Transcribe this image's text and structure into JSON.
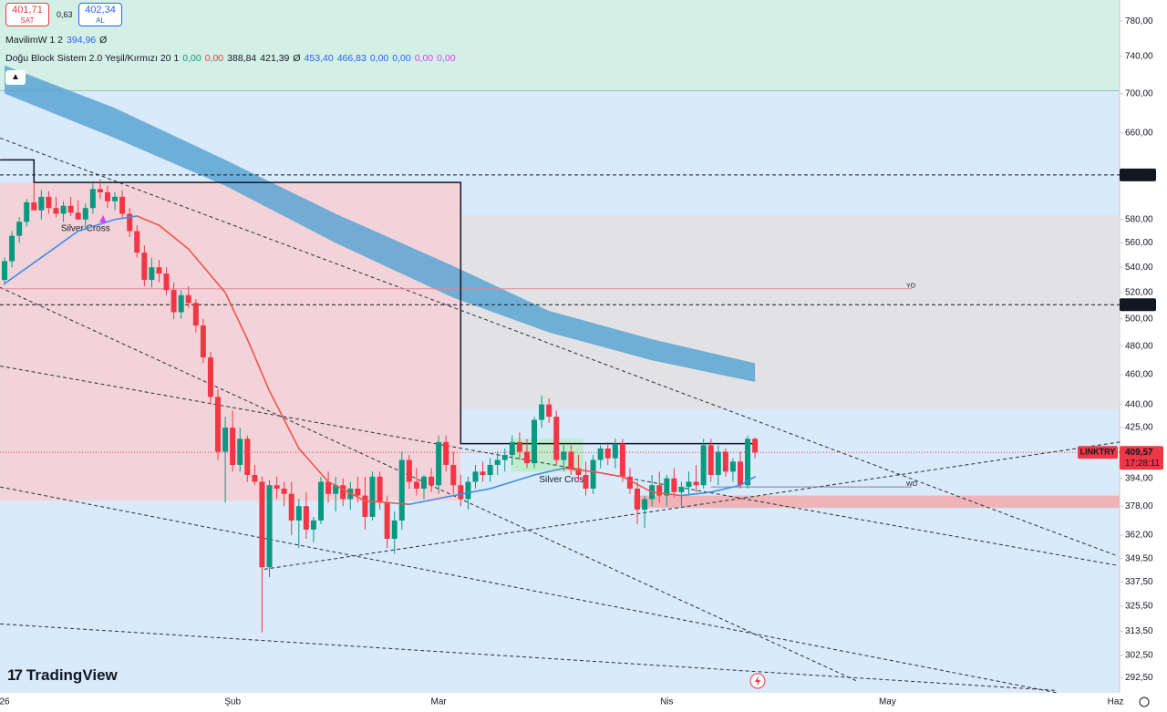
{
  "chart_data": {
    "type": "candlestick",
    "symbol": "LINKTRY",
    "countdown": "17:28:11",
    "log_scale": true,
    "ylim": [
      286,
      805
    ],
    "yticks": [
      {
        "value": 780,
        "label": "780,00"
      },
      {
        "value": 740,
        "label": "740,00"
      },
      {
        "value": 700,
        "label": "700,00"
      },
      {
        "value": 660,
        "label": "660,00"
      },
      {
        "value": 580,
        "label": "580,00"
      },
      {
        "value": 560,
        "label": "560,00"
      },
      {
        "value": 540,
        "label": "540,00"
      },
      {
        "value": 520,
        "label": "520,00"
      },
      {
        "value": 500,
        "label": "500,00"
      },
      {
        "value": 480,
        "label": "480,00"
      },
      {
        "value": 460,
        "label": "460,00"
      },
      {
        "value": 440,
        "label": "440,00"
      },
      {
        "value": 425,
        "label": "425,00"
      },
      {
        "value": 394,
        "label": "394,00"
      },
      {
        "value": 378,
        "label": "378,00"
      },
      {
        "value": 362,
        "label": "362,00"
      },
      {
        "value": 349.5,
        "label": "349,50"
      },
      {
        "value": 337.5,
        "label": "337,50"
      },
      {
        "value": 325.5,
        "label": "325,50"
      },
      {
        "value": 313.5,
        "label": "313,50"
      },
      {
        "value": 302.5,
        "label": "302,50"
      },
      {
        "value": 292.5,
        "label": "292,50"
      }
    ],
    "colors": {
      "up": "#089981",
      "down": "#f23645"
    },
    "categories": [
      "26",
      null,
      null,
      null,
      null,
      null,
      null,
      null,
      null,
      null,
      null,
      null,
      null,
      null,
      null,
      null,
      null,
      null,
      null,
      null,
      null,
      null,
      null,
      null,
      null,
      null,
      null,
      null,
      null,
      null,
      null,
      "Şub",
      null,
      null,
      null,
      null,
      null,
      null,
      null,
      null,
      null,
      null,
      null,
      null,
      null,
      null,
      null,
      null,
      null,
      null,
      null,
      null,
      null,
      null,
      null,
      null,
      null,
      null,
      null,
      "Mar",
      null,
      null,
      null,
      null,
      null,
      null,
      null,
      null,
      null,
      null,
      null,
      null,
      null,
      null,
      null,
      null,
      null,
      null,
      null,
      null,
      null,
      null,
      null,
      null,
      null,
      null,
      null,
      null,
      null,
      null,
      "Nis",
      null,
      null,
      null,
      null,
      null,
      null,
      null,
      null,
      null,
      null,
      null,
      null,
      null,
      null,
      null,
      null,
      null,
      null,
      null,
      null,
      null,
      null,
      null,
      null,
      null,
      null,
      null,
      null,
      null,
      "May",
      null,
      null,
      null,
      null,
      null,
      null,
      null,
      null,
      null,
      null,
      null,
      null,
      null,
      null,
      null,
      null,
      null,
      null,
      null,
      null,
      null,
      null,
      null,
      null,
      null,
      null,
      null,
      null,
      null,
      null,
      "Haz"
    ],
    "ohlc": [
      [
        530,
        548,
        526,
        545
      ],
      [
        545,
        570,
        540,
        566
      ],
      [
        566,
        582,
        560,
        578
      ],
      [
        578,
        598,
        574,
        595
      ],
      [
        595,
        612,
        590,
        588
      ],
      [
        588,
        606,
        580,
        600
      ],
      [
        600,
        605,
        585,
        590
      ],
      [
        590,
        600,
        582,
        585
      ],
      [
        585,
        596,
        578,
        592
      ],
      [
        592,
        600,
        583,
        586
      ],
      [
        586,
        597,
        580,
        580
      ],
      [
        580,
        594,
        572,
        590
      ],
      [
        590,
        612,
        585,
        607
      ],
      [
        607,
        616,
        598,
        604
      ],
      [
        604,
        610,
        590,
        596
      ],
      [
        596,
        604,
        588,
        600
      ],
      [
        600,
        606,
        582,
        585
      ],
      [
        585,
        590,
        565,
        570
      ],
      [
        570,
        575,
        548,
        552
      ],
      [
        552,
        558,
        525,
        530
      ],
      [
        530,
        548,
        524,
        540
      ],
      [
        540,
        546,
        528,
        535
      ],
      [
        535,
        540,
        518,
        522
      ],
      [
        522,
        528,
        500,
        505
      ],
      [
        505,
        522,
        500,
        518
      ],
      [
        518,
        525,
        508,
        512
      ],
      [
        512,
        515,
        490,
        495
      ],
      [
        495,
        500,
        468,
        472
      ],
      [
        472,
        476,
        440,
        445
      ],
      [
        445,
        450,
        405,
        410
      ],
      [
        410,
        432,
        380,
        425
      ],
      [
        425,
        436,
        398,
        402
      ],
      [
        402,
        425,
        398,
        418
      ],
      [
        418,
        420,
        392,
        396
      ],
      [
        396,
        402,
        390,
        392
      ],
      [
        392,
        395,
        313,
        345
      ],
      [
        345,
        393,
        340,
        390
      ],
      [
        390,
        395,
        382,
        388
      ],
      [
        388,
        392,
        378,
        385
      ],
      [
        385,
        392,
        362,
        370
      ],
      [
        370,
        382,
        355,
        378
      ],
      [
        378,
        386,
        360,
        365
      ],
      [
        365,
        372,
        358,
        370
      ],
      [
        370,
        395,
        368,
        392
      ],
      [
        392,
        398,
        380,
        385
      ],
      [
        385,
        395,
        375,
        390
      ],
      [
        390,
        394,
        378,
        382
      ],
      [
        382,
        392,
        376,
        388
      ],
      [
        388,
        395,
        380,
        384
      ],
      [
        384,
        395,
        365,
        372
      ],
      [
        372,
        398,
        370,
        395
      ],
      [
        395,
        398,
        376,
        380
      ],
      [
        380,
        384,
        355,
        360
      ],
      [
        360,
        375,
        352,
        370
      ],
      [
        370,
        410,
        365,
        405
      ],
      [
        405,
        408,
        388,
        392
      ],
      [
        392,
        400,
        384,
        388
      ],
      [
        388,
        396,
        382,
        395
      ],
      [
        395,
        400,
        386,
        390
      ],
      [
        390,
        420,
        385,
        416
      ],
      [
        416,
        420,
        398,
        402
      ],
      [
        402,
        410,
        385,
        390
      ],
      [
        390,
        396,
        378,
        382
      ],
      [
        382,
        395,
        376,
        392
      ],
      [
        392,
        402,
        388,
        398
      ],
      [
        398,
        404,
        392,
        396
      ],
      [
        396,
        406,
        392,
        402
      ],
      [
        402,
        410,
        396,
        405
      ],
      [
        405,
        412,
        398,
        408
      ],
      [
        408,
        420,
        402,
        416
      ],
      [
        416,
        422,
        405,
        410
      ],
      [
        410,
        418,
        400,
        403
      ],
      [
        403,
        432,
        400,
        430
      ],
      [
        430,
        446,
        425,
        440
      ],
      [
        440,
        444,
        428,
        432
      ],
      [
        432,
        436,
        402,
        405
      ],
      [
        405,
        414,
        398,
        410
      ],
      [
        410,
        414,
        396,
        400
      ],
      [
        400,
        408,
        392,
        396
      ],
      [
        396,
        404,
        384,
        388
      ],
      [
        388,
        408,
        385,
        405
      ],
      [
        405,
        414,
        400,
        412
      ],
      [
        412,
        416,
        402,
        406
      ],
      [
        406,
        418,
        400,
        415
      ],
      [
        415,
        418,
        392,
        395
      ],
      [
        395,
        400,
        385,
        388
      ],
      [
        388,
        392,
        368,
        376
      ],
      [
        376,
        384,
        366,
        382
      ],
      [
        382,
        396,
        378,
        390
      ],
      [
        390,
        398,
        380,
        384
      ],
      [
        384,
        396,
        378,
        394
      ],
      [
        394,
        400,
        383,
        386
      ],
      [
        386,
        392,
        378,
        389
      ],
      [
        389,
        398,
        384,
        392
      ],
      [
        392,
        402,
        386,
        390
      ],
      [
        390,
        418,
        388,
        414
      ],
      [
        414,
        418,
        392,
        396
      ],
      [
        396,
        414,
        390,
        410
      ],
      [
        410,
        412,
        395,
        398
      ],
      [
        398,
        406,
        392,
        404
      ],
      [
        404,
        410,
        388,
        390
      ],
      [
        390,
        420,
        388,
        418
      ],
      [
        418,
        419,
        406,
        409.57
      ],
      null,
      null,
      null,
      null,
      null,
      null,
      null,
      null,
      null,
      null,
      null,
      null,
      null,
      null,
      null,
      null,
      null,
      null,
      null,
      null,
      null,
      null,
      null,
      null,
      null,
      null,
      null,
      null,
      null,
      null,
      null,
      null,
      null,
      null,
      null,
      null,
      null,
      null,
      null,
      null,
      null,
      null,
      null,
      null,
      null,
      null,
      null,
      null,
      null
    ],
    "last_price": {
      "value": 409.57,
      "label": "409,57"
    },
    "levels": [
      {
        "value": 619.94,
        "label": "619,94"
      },
      {
        "value": 510.67,
        "label": "510,67"
      }
    ],
    "overlays": {
      "zones": [
        {
          "x": [
            -0.6,
            152
          ],
          "range": [
            703,
            805
          ],
          "color": "#d4efe5"
        },
        {
          "x": [
            -0.6,
            152
          ],
          "range": [
            437,
            584
          ],
          "color": "#e2e2e4"
        },
        {
          "x": [
            -0.6,
            62
          ],
          "range": [
            381,
            613
          ],
          "color": "#f3d3da"
        },
        {
          "x": [
            85.5,
            152
          ],
          "range": [
            377,
            384
          ],
          "color": "#f0b4b8"
        },
        {
          "x": [
            68.8,
            78.7
          ],
          "range": [
            398,
            418
          ],
          "color": "#bfeccd"
        }
      ],
      "cloud": {
        "color": "#5aa5d2",
        "x": [
          0,
          15,
          30,
          45,
          61,
          74,
          88,
          102
        ],
        "upper": [
          730,
          685,
          634,
          585,
          541,
          506,
          485,
          468
        ],
        "lower": [
          700,
          655,
          610,
          560,
          516,
          490,
          470,
          455
        ]
      },
      "mavilim": {
        "up_color": "#3d8ee6",
        "down_color": "#f2554a",
        "x": [
          0,
          5,
          10,
          15,
          18,
          21,
          25,
          30,
          33,
          36,
          40,
          44,
          49,
          55,
          61,
          66,
          72,
          76,
          80,
          84,
          88,
          92,
          96,
          100,
          102
        ],
        "values": [
          527,
          548,
          570,
          580,
          583,
          575,
          555,
          520,
          485,
          449,
          412,
          392,
          381,
          379,
          384,
          388,
          396,
          400,
          398,
          395,
          386,
          384,
          386,
          390,
          394.96
        ]
      },
      "block_line": {
        "x": [
          -0.6,
          4,
          4,
          62,
          62,
          102,
          102
        ],
        "values": [
          634,
          634,
          613,
          613,
          415,
          415,
          409
        ]
      },
      "trendlines": [
        {
          "x": [
            -0.6,
            151.2
          ],
          "values": [
            655,
            351
          ]
        },
        {
          "x": [
            -0.6,
            115.9
          ],
          "values": [
            524,
            291
          ]
        },
        {
          "x": [
            -0.6,
            151.2
          ],
          "values": [
            466,
            346
          ]
        },
        {
          "x": [
            -0.6,
            143.1
          ],
          "values": [
            389,
            286
          ]
        },
        {
          "x": [
            -0.6,
            143.1
          ],
          "values": [
            317,
            287
          ]
        },
        {
          "x": [
            35.3,
            151.6
          ],
          "values": [
            344,
            416
          ]
        }
      ],
      "marker_lines": [
        {
          "name": "YO",
          "x": [
            -0.6,
            123.3
          ],
          "value": 523,
          "color": "#e08a96"
        },
        {
          "name": "WO",
          "x": [
            96,
            123.3
          ],
          "value": 389,
          "color": "#7a8794"
        }
      ],
      "signals": [
        {
          "label": "Silver Cross",
          "x": 11,
          "value": 572,
          "color": "#3d8ee6"
        },
        {
          "label": "Silver Cross",
          "x": 76,
          "value": 393,
          "color": "#3d8ee6"
        }
      ]
    }
  },
  "header": {
    "bid": {
      "value": "401,71",
      "label": "SAT"
    },
    "spread": "0,63",
    "ask": {
      "value": "402,34",
      "label": "AL"
    },
    "indicators": [
      [
        {
          "text": "MavilimW 1 2",
          "color": "#131722"
        },
        {
          "text": "394,96",
          "color": "#2962ff"
        },
        {
          "text": "Ø",
          "color": "#131722"
        }
      ],
      [
        {
          "text": "Doğu Block Sistem 2.0 Yeşil/Kırmızı 20 1",
          "color": "#131722"
        },
        {
          "text": "0,00",
          "color": "#089981"
        },
        {
          "text": "0,00",
          "color": "#f23645"
        },
        {
          "text": "388,84",
          "color": "#131722"
        },
        {
          "text": "421,39",
          "color": "#131722"
        },
        {
          "text": "Ø",
          "color": "#131722"
        },
        {
          "text": "453,40",
          "color": "#2962ff"
        },
        {
          "text": "466,83",
          "color": "#2962ff"
        },
        {
          "text": "0,00",
          "color": "#2962ff"
        },
        {
          "text": "0,00",
          "color": "#2962ff"
        },
        {
          "text": "0,00",
          "color": "#e040fb"
        },
        {
          "text": "0,00",
          "color": "#e040fb"
        }
      ]
    ]
  },
  "logo": "TradingView"
}
